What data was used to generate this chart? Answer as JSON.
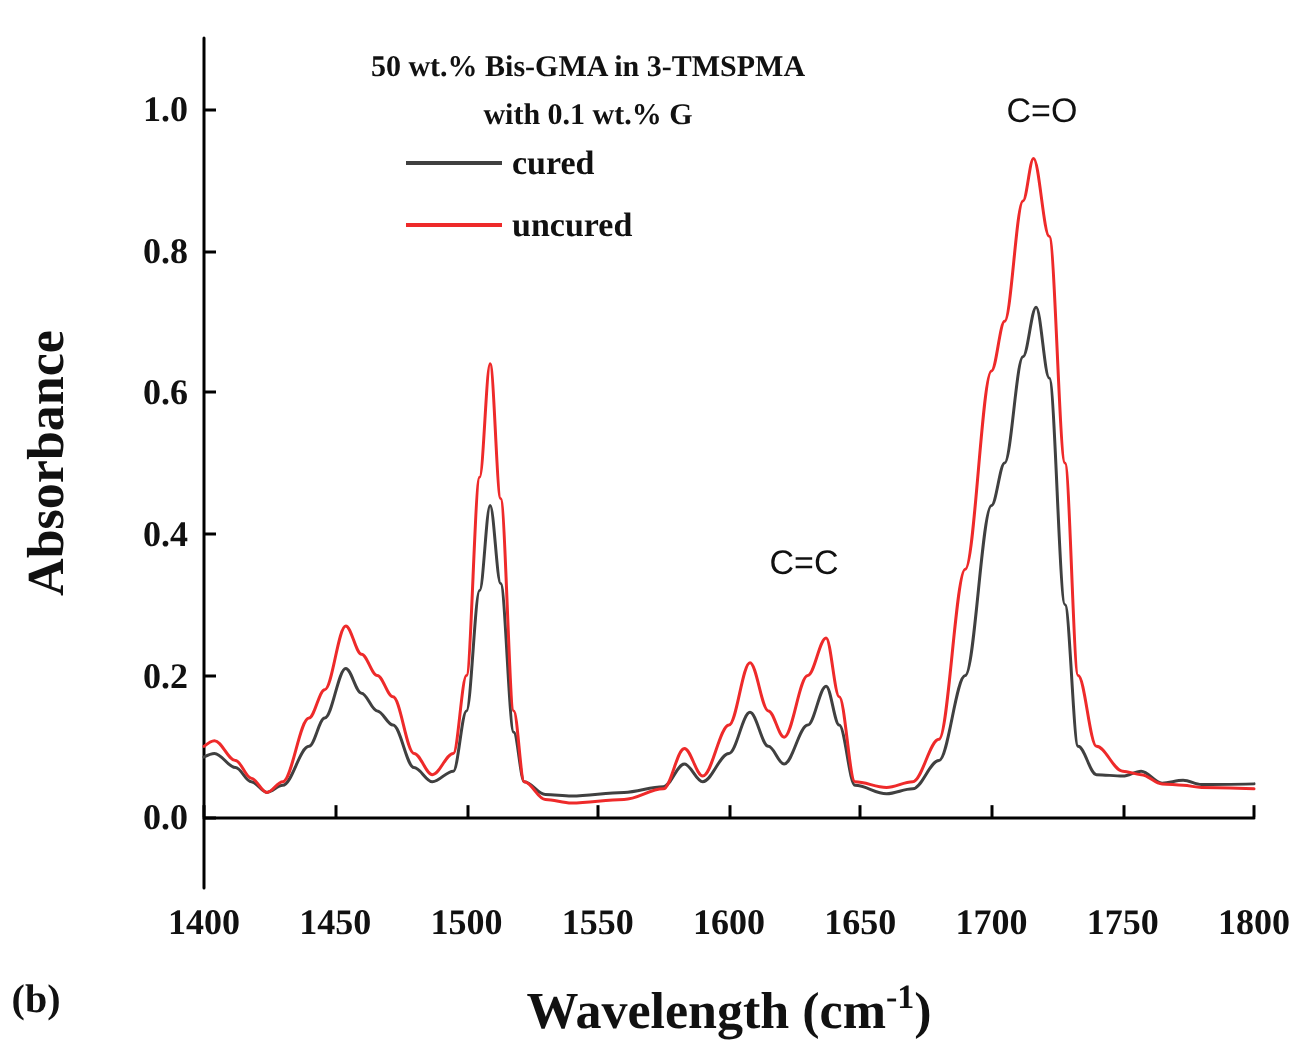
{
  "chart_data": {
    "type": "line",
    "xlabel": "Wavelength (cm$^{-1}$)",
    "ylabel": "Absorbance",
    "legend_title": "50 wt.% Bis-GMA in 3-TMSPMA\nwith 0.1 wt.% G",
    "xlim": [
      1400,
      1800
    ],
    "xticks": [
      1400,
      1450,
      1500,
      1550,
      1600,
      1650,
      1700,
      1750,
      1800
    ],
    "ylim": [
      -0.1,
      1.1
    ],
    "yticks": [
      {
        "value": 0,
        "label": "0.0"
      },
      0.2,
      0.4,
      0.6,
      0.8,
      {
        "value": 1,
        "label": "1.0"
      }
    ],
    "grid": false,
    "legend": "top left",
    "marker": "none",
    "line_style": "solid",
    "annotations": [
      "C=C",
      "C=O",
      "(b)"
    ],
    "series": [
      {
        "name": "cured",
        "color": "#404040",
        "x": [
          1400,
          1404,
          1412,
          1418,
          1424,
          1430,
          1440,
          1446,
          1454,
          1460,
          1466,
          1472,
          1480,
          1487,
          1495,
          1500,
          1505,
          1509,
          1513,
          1518,
          1522,
          1530,
          1540,
          1560,
          1575,
          1583,
          1590,
          1600,
          1608,
          1615,
          1621,
          1630,
          1637,
          1642,
          1648,
          1660,
          1670,
          1680,
          1690,
          1700,
          1705,
          1712,
          1717,
          1722,
          1728,
          1733,
          1740,
          1750,
          1757,
          1765,
          1773,
          1780,
          1800
        ],
        "values": [
          0.085,
          0.09,
          0.07,
          0.05,
          0.035,
          0.045,
          0.1,
          0.14,
          0.21,
          0.175,
          0.15,
          0.13,
          0.07,
          0.05,
          0.065,
          0.15,
          0.32,
          0.44,
          0.33,
          0.12,
          0.05,
          0.032,
          0.03,
          0.035,
          0.043,
          0.075,
          0.05,
          0.09,
          0.148,
          0.1,
          0.075,
          0.13,
          0.185,
          0.13,
          0.045,
          0.033,
          0.04,
          0.08,
          0.2,
          0.44,
          0.5,
          0.65,
          0.72,
          0.62,
          0.3,
          0.1,
          0.06,
          0.058,
          0.065,
          0.048,
          0.052,
          0.046,
          0.047
        ]
      },
      {
        "name": "uncured",
        "color": "#ee2a2a",
        "x": [
          1400,
          1404,
          1412,
          1418,
          1424,
          1430,
          1440,
          1446,
          1454,
          1460,
          1466,
          1472,
          1480,
          1487,
          1495,
          1500,
          1505,
          1509,
          1513,
          1518,
          1522,
          1530,
          1540,
          1560,
          1575,
          1583,
          1590,
          1600,
          1608,
          1615,
          1621,
          1630,
          1637,
          1642,
          1648,
          1660,
          1670,
          1680,
          1690,
          1700,
          1705,
          1712,
          1716,
          1722,
          1728,
          1733,
          1740,
          1750,
          1757,
          1765,
          1773,
          1780,
          1800
        ],
        "values": [
          0.1,
          0.108,
          0.08,
          0.055,
          0.035,
          0.05,
          0.14,
          0.18,
          0.27,
          0.23,
          0.2,
          0.17,
          0.09,
          0.06,
          0.09,
          0.2,
          0.48,
          0.64,
          0.45,
          0.15,
          0.05,
          0.025,
          0.02,
          0.025,
          0.04,
          0.097,
          0.058,
          0.13,
          0.218,
          0.15,
          0.113,
          0.2,
          0.253,
          0.17,
          0.05,
          0.042,
          0.05,
          0.11,
          0.35,
          0.63,
          0.7,
          0.87,
          0.93,
          0.82,
          0.5,
          0.2,
          0.1,
          0.065,
          0.06,
          0.047,
          0.045,
          0.042,
          0.04
        ]
      }
    ]
  }
}
